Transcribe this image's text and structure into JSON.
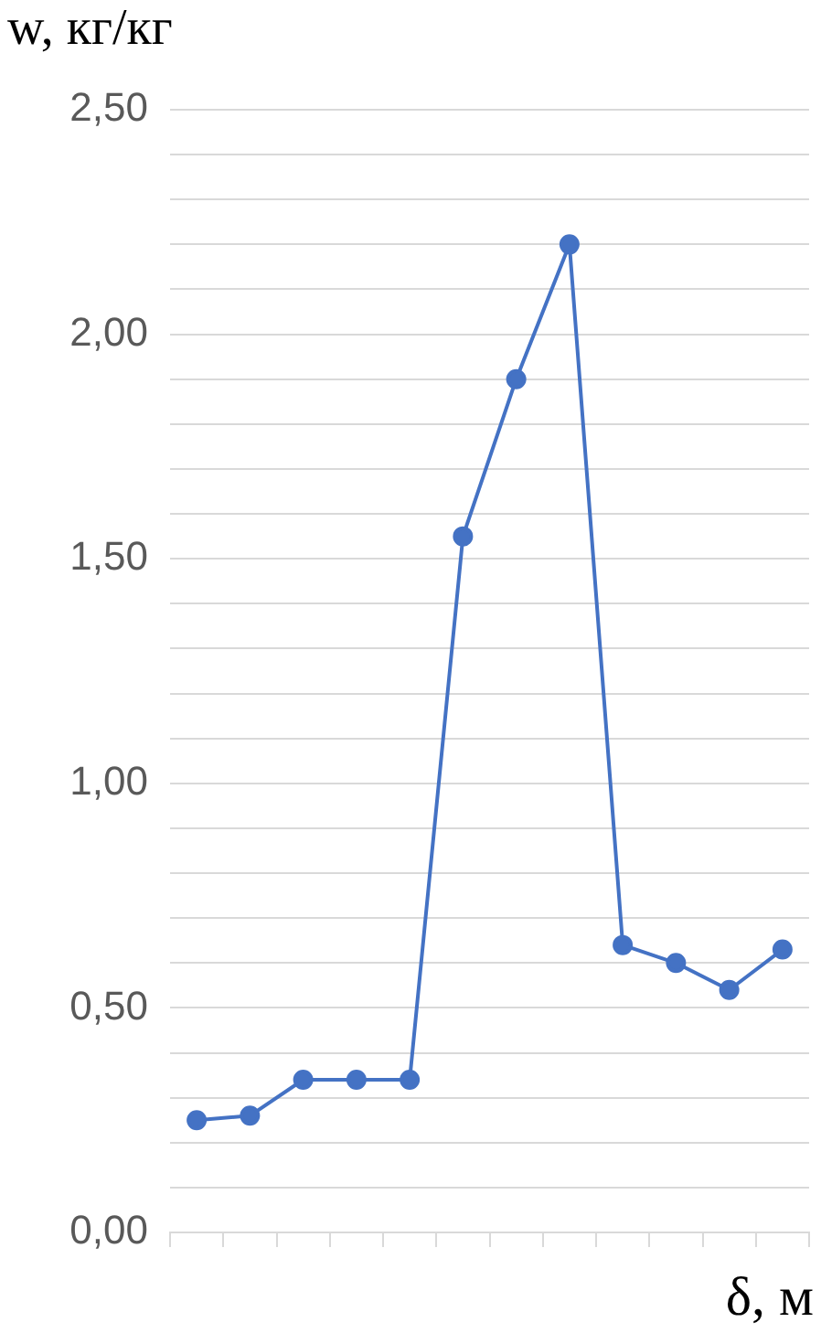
{
  "chart_data": {
    "type": "line",
    "ylabel": "w, кг/кг",
    "xlabel": "δ, м",
    "categories": [
      null,
      null,
      null,
      null,
      null,
      null,
      null,
      null,
      null,
      null,
      null,
      null
    ],
    "series": [
      {
        "color": "#4472c4",
        "values": [
          0.25,
          0.26,
          0.34,
          0.34,
          0.34,
          1.55,
          1.9,
          2.2,
          0.64,
          0.6,
          0.54,
          0.63
        ]
      }
    ],
    "ylim": [
      0,
      2.5
    ],
    "yticks": [
      {
        "value": 0,
        "label": "0,00"
      },
      {
        "value": 0.1,
        "label": null
      },
      {
        "value": 0.2,
        "label": null
      },
      {
        "value": 0.3,
        "label": null
      },
      {
        "value": 0.4,
        "label": null
      },
      {
        "value": 0.5,
        "label": "0,50"
      },
      {
        "value": 0.6,
        "label": null
      },
      {
        "value": 0.7,
        "label": null
      },
      {
        "value": 0.8,
        "label": null
      },
      {
        "value": 0.9,
        "label": null
      },
      {
        "value": 1,
        "label": "1,00"
      },
      {
        "value": 1.1,
        "label": null
      },
      {
        "value": 1.2,
        "label": null
      },
      {
        "value": 1.3,
        "label": null
      },
      {
        "value": 1.4,
        "label": null
      },
      {
        "value": 1.5,
        "label": "1,50"
      },
      {
        "value": 1.6,
        "label": null
      },
      {
        "value": 1.7,
        "label": null
      },
      {
        "value": 1.8,
        "label": null
      },
      {
        "value": 1.9,
        "label": null
      },
      {
        "value": 2,
        "label": "2,00"
      },
      {
        "value": 2.1,
        "label": null
      },
      {
        "value": 2.2,
        "label": null
      },
      {
        "value": 2.3,
        "label": null
      },
      {
        "value": 2.4,
        "label": null
      },
      {
        "value": 2.5,
        "label": "2,50"
      }
    ],
    "grid": "y",
    "marker": "circle",
    "line_style": "solid",
    "legend": false
  }
}
